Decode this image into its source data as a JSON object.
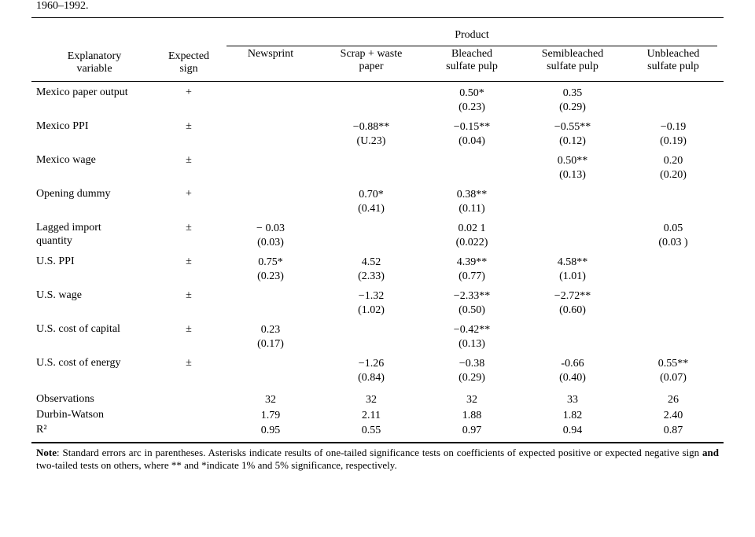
{
  "caption_fragment": "1960–1992.",
  "header": {
    "super": "Product",
    "var": "Explanatory\nvariable",
    "sign": "Expected\nsign",
    "products": [
      "Newsprint",
      "Scrap + waste\npaper",
      "Bleached\nsulfate pulp",
      "Semibleached\nsulfate pulp",
      "Unbleached\nsulfate pulp"
    ]
  },
  "rows": [
    {
      "label": "Mexico paper output",
      "sign": "+",
      "cells": [
        "",
        "",
        "0.50*\n(0.23)",
        "0.35\n(0.29)",
        ""
      ]
    },
    {
      "label": "Mexico PPI",
      "sign": "±",
      "cells": [
        "",
        "−0.88**\n(U.23)",
        "−0.15**\n(0.04)",
        "−0.55**\n(0.12)",
        "−0.19\n(0.19)"
      ]
    },
    {
      "label": "Mexico wage",
      "sign": "±",
      "cells": [
        "",
        "",
        "",
        "0.50**\n(0.13)",
        "0.20\n(0.20)"
      ]
    },
    {
      "label": "Opening dummy",
      "sign": "+",
      "cells": [
        "",
        "0.70*\n(0.41)",
        "0.38**\n(0.11)",
        "",
        ""
      ]
    },
    {
      "label": "Lagged import\n    quantity",
      "sign": "±",
      "cells": [
        "− 0.03\n(0.03)",
        "",
        "0.02 1\n(0.022)",
        "",
        "0.05\n(0.03 )"
      ]
    },
    {
      "label": "U.S. PPI",
      "sign": "±",
      "cells": [
        "0.75*\n(0.23)",
        "4.52\n(2.33)",
        "4.39**\n(0.77)",
        "4.58**\n(1.01)",
        ""
      ]
    },
    {
      "label": "U.S. wage",
      "sign": "±",
      "cells": [
        "",
        "−1.32\n(1.02)",
        "−2.33**\n(0.50)",
        "−2.72**\n(0.60)",
        ""
      ]
    },
    {
      "label": "U.S. cost of capital",
      "sign": "±",
      "cells": [
        "0.23\n(0.17)",
        "",
        "−0.42**\n(0.13)",
        "",
        ""
      ]
    },
    {
      "label": "U.S. cost of energy",
      "sign": "±",
      "cells": [
        "",
        "−1.26\n(0.84)",
        "−0.38\n(0.29)",
        "-0.66\n(0.40)",
        "0.55**\n(0.07)"
      ]
    }
  ],
  "stats": [
    {
      "label": "Observations",
      "cells": [
        "32",
        "32",
        "32",
        "33",
        "26"
      ]
    },
    {
      "label": "Durbin-Watson",
      "cells": [
        "1.79",
        "2.11",
        "1.88",
        "1.82",
        "2.40"
      ]
    },
    {
      "label": "R²",
      "cells": [
        "0.95",
        "0.55",
        "0.97",
        "0.94",
        "0.87"
      ]
    }
  ],
  "note": {
    "lead": "Note",
    "body1": ": Standard errors arc in parentheses. Asterisks indicate results of one-tailed significance tests on coefficients of expected positive or expected negative sign ",
    "bold": "and",
    "body2": " two-tailed tests on others, where ** and *indicate 1% and 5% significance, respectively."
  }
}
